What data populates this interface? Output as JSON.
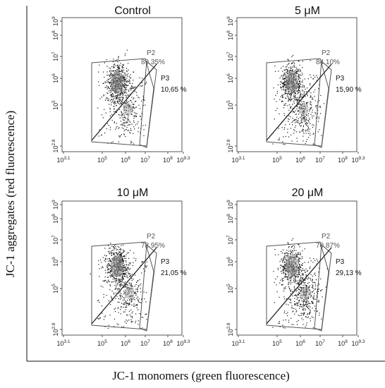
{
  "figure": {
    "y_axis_title": "JC-1 aggregates (red fluorescence)",
    "x_axis_title": "JC-1 monomers (green fluorescence)"
  },
  "chart_data": [
    {
      "type": "scatter",
      "title": "Control",
      "x_scale": "log",
      "y_scale": "log",
      "xlim_log10": [
        3.1,
        9.3
      ],
      "ylim_log10": [
        2.8,
        9
      ],
      "x_ticks": [
        "10^3.1",
        "10^5",
        "10^6",
        "10^7",
        "10^8",
        "10^9.3"
      ],
      "y_ticks": [
        "10^2.8",
        "10^5",
        "10^6",
        "10^7",
        "10^8",
        "10^9"
      ],
      "gates": [
        {
          "name": "P2",
          "percent_label": "89.35%",
          "percent": 89.35
        },
        {
          "name": "P3",
          "percent_label": "10,65 %",
          "percent": 10.65
        }
      ]
    },
    {
      "type": "scatter",
      "title": "5 μM",
      "x_scale": "log",
      "y_scale": "log",
      "xlim_log10": [
        3.1,
        9.3
      ],
      "ylim_log10": [
        2.8,
        9
      ],
      "x_ticks": [
        "10^3.1",
        "10^5",
        "10^6",
        "10^7",
        "10^8",
        "10^9.3"
      ],
      "y_ticks": [
        "10^2.8",
        "10^5",
        "10^6",
        "10^7",
        "10^8",
        "10^9"
      ],
      "gates": [
        {
          "name": "P2",
          "percent_label": "84.10%",
          "percent": 84.1
        },
        {
          "name": "P3",
          "percent_label": "15,90 %",
          "percent": 15.9
        }
      ]
    },
    {
      "type": "scatter",
      "title": "10 μM",
      "x_scale": "log",
      "y_scale": "log",
      "xlim_log10": [
        3.1,
        9.3
      ],
      "ylim_log10": [
        2.8,
        9
      ],
      "x_ticks": [
        "10^3.1",
        "10^5",
        "10^6",
        "10^7",
        "10^8",
        "10^9.3"
      ],
      "y_ticks": [
        "10^2.8",
        "10^5",
        "10^6",
        "10^7",
        "10^8",
        "10^9"
      ],
      "gates": [
        {
          "name": "P2",
          "percent_label": "78.95%",
          "percent": 78.95
        },
        {
          "name": "P3",
          "percent_label": "21,05 %",
          "percent": 21.05
        }
      ]
    },
    {
      "type": "scatter",
      "title": "20 μM",
      "x_scale": "log",
      "y_scale": "log",
      "xlim_log10": [
        3.1,
        9.3
      ],
      "ylim_log10": [
        2.8,
        9
      ],
      "x_ticks": [
        "10^3.1",
        "10^5",
        "10^6",
        "10^7",
        "10^8",
        "10^9.3"
      ],
      "y_ticks": [
        "10^2.8",
        "10^5",
        "10^6",
        "10^7",
        "10^8",
        "10^9"
      ],
      "gates": [
        {
          "name": "P2",
          "percent_label": "70.87%",
          "percent": 70.87
        },
        {
          "name": "P3",
          "percent_label": "29,13 %",
          "percent": 29.13
        }
      ]
    }
  ]
}
